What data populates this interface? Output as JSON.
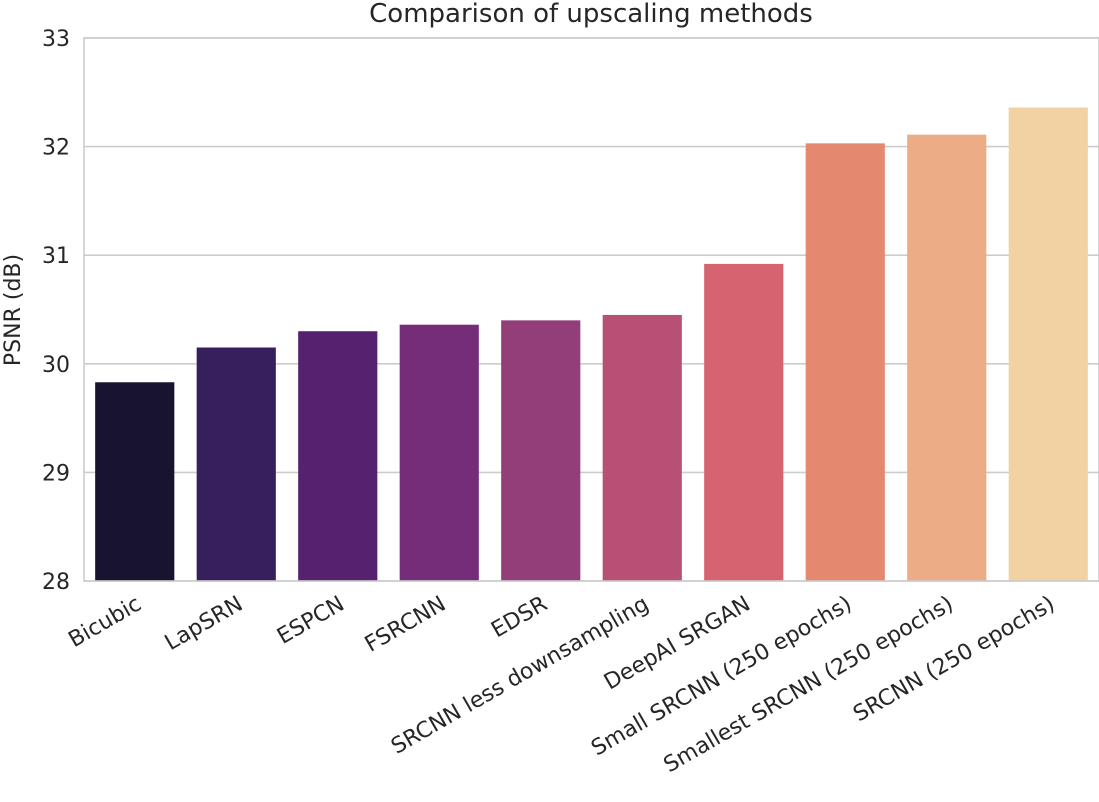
{
  "chart_data": {
    "type": "bar",
    "title": "Comparison of upscaling methods",
    "xlabel": "",
    "ylabel": "PSNR (dB)",
    "ylim": [
      28,
      33
    ],
    "yticks": [
      28,
      29,
      30,
      31,
      32,
      33
    ],
    "grid": "horizontal",
    "categories": [
      "Bicubic",
      "LapSRN",
      "ESPCN",
      "FSRCNN",
      "EDSR",
      "SRCNN less downsampling",
      "DeepAI SRGAN",
      "Small SRCNN (250 epochs)",
      "Smallest SRCNN (250 epochs)",
      "SRCNN (250 epochs)"
    ],
    "values": [
      29.83,
      30.15,
      30.3,
      30.36,
      30.4,
      30.45,
      30.92,
      32.03,
      32.11,
      32.36
    ],
    "colors": [
      "#181331",
      "#371e5c",
      "#56216f",
      "#752d7a",
      "#933e79",
      "#b84f75",
      "#d56370",
      "#e4896f",
      "#ecad86",
      "#f2d1a2"
    ]
  }
}
